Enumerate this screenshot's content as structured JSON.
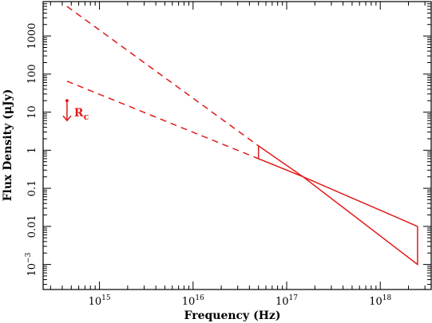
{
  "chart_data": {
    "type": "line",
    "xlabel": "Frequency (Hz)",
    "ylabel": "Flux Density (μJy)",
    "xscale": "log",
    "yscale": "log",
    "xlim": [
      250000000000000.0,
      3.5e+18
    ],
    "ylim": [
      0.00022,
      8000
    ],
    "x_ticks": [
      {
        "value": 1000000000000000.0,
        "base": "10",
        "exp": "15"
      },
      {
        "value": 1e+16,
        "base": "10",
        "exp": "16"
      },
      {
        "value": 1e+17,
        "base": "10",
        "exp": "17"
      },
      {
        "value": 1e+18,
        "base": "10",
        "exp": "18"
      }
    ],
    "y_ticks": [
      {
        "value": 1000,
        "label": "1000"
      },
      {
        "value": 100,
        "label": "100"
      },
      {
        "value": 10,
        "label": "10"
      },
      {
        "value": 1,
        "label": "1"
      },
      {
        "value": 0.1,
        "label": "0.1"
      },
      {
        "value": 0.01,
        "label": "0.01"
      },
      {
        "value": 0.001,
        "base": "10",
        "exp": "−3"
      }
    ],
    "color": "#e01b1b",
    "series": [
      {
        "style": "dashed",
        "x": [
          450000000000000.0,
          5e+16
        ],
        "y": [
          6000,
          1.3
        ]
      },
      {
        "style": "dashed",
        "x": [
          450000000000000.0,
          5e+16
        ],
        "y": [
          65,
          0.6
        ]
      },
      {
        "style": "solid",
        "x": [
          5e+16,
          5e+16,
          1.5e+17,
          2.5e+18,
          2.5e+18
        ],
        "y": [
          1.3,
          0.6,
          0.2,
          0.001,
          0.01
        ]
      },
      {
        "style": "solid",
        "x": [
          5e+16,
          1.5e+17,
          2.5e+18
        ],
        "y": [
          1.3,
          0.2,
          0.01
        ]
      }
    ],
    "annotations": [
      {
        "type": "upper-limit",
        "x": 450000000000000.0,
        "y": 20,
        "label_main": "R",
        "label_sub": "c"
      }
    ]
  }
}
